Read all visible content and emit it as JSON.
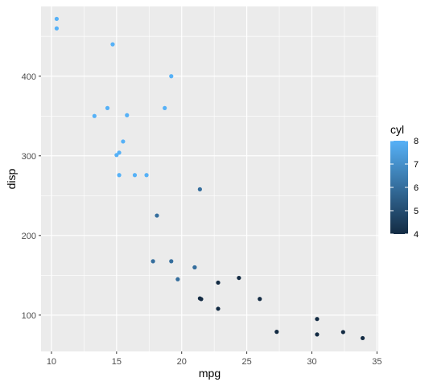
{
  "chart_data": {
    "type": "scatter",
    "title": "",
    "xlabel": "mpg",
    "ylabel": "disp",
    "xlim": [
      9.2,
      35.1
    ],
    "ylim": [
      54.4,
      487.6
    ],
    "xticks": [
      10,
      15,
      20,
      25,
      30,
      35
    ],
    "yticks": [
      100,
      200,
      300,
      400
    ],
    "grid": true,
    "panel_color": "#EBEBEB",
    "grid_color": "#FFFFFF",
    "legend": {
      "title": "cyl",
      "placement": "right",
      "range": [
        4,
        8
      ],
      "ticks": [
        8,
        7,
        6,
        5,
        4
      ],
      "color_low": "#132B43",
      "color_high": "#56B1F7"
    },
    "points": [
      {
        "x": 21.0,
        "y": 160,
        "cyl": 6
      },
      {
        "x": 21.0,
        "y": 160,
        "cyl": 6
      },
      {
        "x": 22.8,
        "y": 108,
        "cyl": 4
      },
      {
        "x": 21.4,
        "y": 258,
        "cyl": 6
      },
      {
        "x": 18.7,
        "y": 360,
        "cyl": 8
      },
      {
        "x": 18.1,
        "y": 225,
        "cyl": 6
      },
      {
        "x": 14.3,
        "y": 360,
        "cyl": 8
      },
      {
        "x": 24.4,
        "y": 146.7,
        "cyl": 4
      },
      {
        "x": 22.8,
        "y": 140.8,
        "cyl": 4
      },
      {
        "x": 19.2,
        "y": 167.6,
        "cyl": 6
      },
      {
        "x": 17.8,
        "y": 167.6,
        "cyl": 6
      },
      {
        "x": 16.4,
        "y": 275.8,
        "cyl": 8
      },
      {
        "x": 17.3,
        "y": 275.8,
        "cyl": 8
      },
      {
        "x": 15.2,
        "y": 275.8,
        "cyl": 8
      },
      {
        "x": 10.4,
        "y": 472,
        "cyl": 8
      },
      {
        "x": 10.4,
        "y": 460,
        "cyl": 8
      },
      {
        "x": 14.7,
        "y": 440,
        "cyl": 8
      },
      {
        "x": 32.4,
        "y": 78.7,
        "cyl": 4
      },
      {
        "x": 30.4,
        "y": 75.7,
        "cyl": 4
      },
      {
        "x": 33.9,
        "y": 71.1,
        "cyl": 4
      },
      {
        "x": 21.5,
        "y": 120.1,
        "cyl": 4
      },
      {
        "x": 15.5,
        "y": 318,
        "cyl": 8
      },
      {
        "x": 15.2,
        "y": 304,
        "cyl": 8
      },
      {
        "x": 13.3,
        "y": 350,
        "cyl": 8
      },
      {
        "x": 19.2,
        "y": 400,
        "cyl": 8
      },
      {
        "x": 27.3,
        "y": 79,
        "cyl": 4
      },
      {
        "x": 26.0,
        "y": 120.3,
        "cyl": 4
      },
      {
        "x": 30.4,
        "y": 95.1,
        "cyl": 4
      },
      {
        "x": 15.8,
        "y": 351,
        "cyl": 8
      },
      {
        "x": 19.7,
        "y": 145,
        "cyl": 6
      },
      {
        "x": 15.0,
        "y": 301,
        "cyl": 8
      },
      {
        "x": 21.4,
        "y": 121,
        "cyl": 4
      }
    ]
  }
}
